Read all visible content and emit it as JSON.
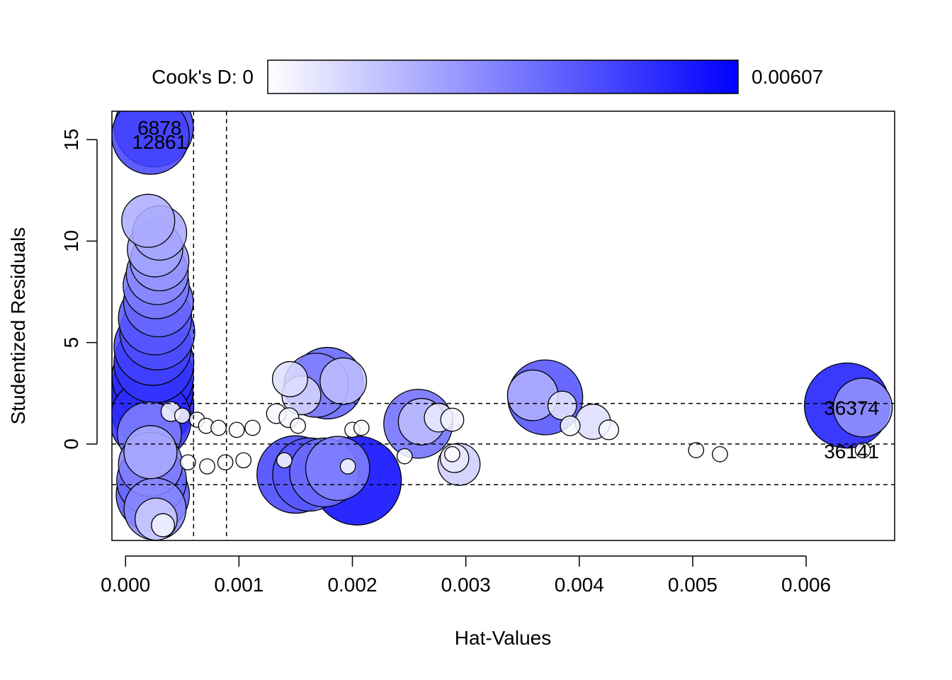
{
  "chart_data": {
    "type": "scatter",
    "xlabel": "Hat-Values",
    "ylabel": "Studentized Residuals",
    "xlim": [
      -0.00012,
      0.00678
    ],
    "ylim": [
      -4.75,
      16.4
    ],
    "x_ticks": [
      {
        "value": 0.0,
        "label": "0.000"
      },
      {
        "value": 0.001,
        "label": "0.001"
      },
      {
        "value": 0.002,
        "label": "0.002"
      },
      {
        "value": 0.003,
        "label": "0.003"
      },
      {
        "value": 0.004,
        "label": "0.004"
      },
      {
        "value": 0.005,
        "label": "0.005"
      },
      {
        "value": 0.006,
        "label": "0.006"
      }
    ],
    "y_ticks": [
      {
        "value": 0,
        "label": "0"
      },
      {
        "value": 5,
        "label": "5"
      },
      {
        "value": 10,
        "label": "10"
      },
      {
        "value": 15,
        "label": "15"
      }
    ],
    "reference_lines": {
      "vertical": [
        0.0006,
        0.00089
      ],
      "horizontal": [
        -2,
        0,
        2
      ]
    },
    "colorbar": {
      "label": "Cook's D: 0",
      "max_label": "0.00607",
      "min": 0,
      "max": 0.00607,
      "color_low": "#ffffff",
      "color_high": "#0000ff"
    },
    "point_labels": [
      {
        "text": "6878",
        "x": 0.0003,
        "y": 15.6
      },
      {
        "text": "12861",
        "x": 0.0003,
        "y": 14.9
      },
      {
        "text": "36374",
        "x": 0.0064,
        "y": 1.8
      },
      {
        "text": "36141",
        "x": 0.0064,
        "y": -0.35
      }
    ],
    "points": [
      {
        "h": 0.00022,
        "r": 15.2,
        "d": 0.0045
      },
      {
        "h": 0.00025,
        "r": 15.6,
        "d": 0.0047
      },
      {
        "h": 0.0002,
        "r": 11.0,
        "d": 0.002
      },
      {
        "h": 0.0003,
        "r": 10.4,
        "d": 0.0021
      },
      {
        "h": 0.00026,
        "r": 9.6,
        "d": 0.0022
      },
      {
        "h": 0.0003,
        "r": 9.0,
        "d": 0.0025
      },
      {
        "h": 0.00028,
        "r": 8.4,
        "d": 0.0028
      },
      {
        "h": 0.00027,
        "r": 7.8,
        "d": 0.0032
      },
      {
        "h": 0.00029,
        "r": 7.0,
        "d": 0.0036
      },
      {
        "h": 0.00026,
        "r": 6.2,
        "d": 0.004
      },
      {
        "h": 0.00028,
        "r": 5.5,
        "d": 0.0042
      },
      {
        "h": 0.00024,
        "r": 4.8,
        "d": 0.0045
      },
      {
        "h": 0.00025,
        "r": 4.0,
        "d": 0.0048
      },
      {
        "h": 0.00024,
        "r": 3.3,
        "d": 0.005
      },
      {
        "h": 0.00023,
        "r": 2.6,
        "d": 0.0052
      },
      {
        "h": 0.00023,
        "r": 1.9,
        "d": 0.0054
      },
      {
        "h": 0.00022,
        "r": 1.2,
        "d": 0.005
      },
      {
        "h": 0.00021,
        "r": 0.5,
        "d": 0.003
      },
      {
        "h": 0.00022,
        "r": -0.4,
        "d": 0.002
      },
      {
        "h": 0.00022,
        "r": -1.0,
        "d": 0.003
      },
      {
        "h": 0.00023,
        "r": -1.8,
        "d": 0.0036
      },
      {
        "h": 0.00024,
        "r": -2.5,
        "d": 0.004
      },
      {
        "h": 0.00026,
        "r": -3.2,
        "d": 0.0028
      },
      {
        "h": 0.00027,
        "r": -3.7,
        "d": 0.0012
      },
      {
        "h": 0.00033,
        "r": -4.0,
        "d": 0.0003
      },
      {
        "h": 0.0004,
        "r": 1.6,
        "d": 0.0002
      },
      {
        "h": 0.0005,
        "r": 1.4,
        "d": 0.0001
      },
      {
        "h": 0.00063,
        "r": 1.2,
        "d": 0.0001
      },
      {
        "h": 0.00071,
        "r": 0.9,
        "d": 0.0001
      },
      {
        "h": 0.00082,
        "r": 0.8,
        "d": 0.0001
      },
      {
        "h": 0.00098,
        "r": 0.7,
        "d": 0.0001
      },
      {
        "h": 0.00112,
        "r": 0.8,
        "d": 0.0001
      },
      {
        "h": 0.00055,
        "r": -0.9,
        "d": 0.0001
      },
      {
        "h": 0.00072,
        "r": -1.1,
        "d": 0.0001
      },
      {
        "h": 0.00088,
        "r": -0.9,
        "d": 0.0001
      },
      {
        "h": 0.00104,
        "r": -0.8,
        "d": 0.0001
      },
      {
        "h": 0.00145,
        "r": 3.2,
        "d": 0.0008
      },
      {
        "h": 0.00155,
        "r": 2.4,
        "d": 0.001
      },
      {
        "h": 0.00168,
        "r": 2.9,
        "d": 0.003
      },
      {
        "h": 0.00178,
        "r": 3.0,
        "d": 0.0038
      },
      {
        "h": 0.00192,
        "r": 3.1,
        "d": 0.0015
      },
      {
        "h": 0.00133,
        "r": 1.5,
        "d": 0.0002
      },
      {
        "h": 0.00144,
        "r": 1.3,
        "d": 0.0002
      },
      {
        "h": 0.00152,
        "r": 0.9,
        "d": 0.0001
      },
      {
        "h": 0.002,
        "r": 0.7,
        "d": 0.0001
      },
      {
        "h": 0.00208,
        "r": 0.8,
        "d": 0.0001
      },
      {
        "h": 0.0014,
        "r": -0.8,
        "d": 0.0001
      },
      {
        "h": 0.0015,
        "r": -1.5,
        "d": 0.0045
      },
      {
        "h": 0.00162,
        "r": -1.5,
        "d": 0.004
      },
      {
        "h": 0.00175,
        "r": -1.4,
        "d": 0.0035
      },
      {
        "h": 0.00187,
        "r": -1.2,
        "d": 0.003
      },
      {
        "h": 0.00204,
        "r": -1.8,
        "d": 0.006
      },
      {
        "h": 0.00196,
        "r": -1.1,
        "d": 0.0001
      },
      {
        "h": 0.00258,
        "r": 1.0,
        "d": 0.0035
      },
      {
        "h": 0.00261,
        "r": 1.1,
        "d": 0.0015
      },
      {
        "h": 0.00276,
        "r": 1.3,
        "d": 0.0005
      },
      {
        "h": 0.00288,
        "r": 1.2,
        "d": 0.0003
      },
      {
        "h": 0.00246,
        "r": -0.6,
        "d": 0.0001
      },
      {
        "h": 0.00288,
        "r": -0.5,
        "d": 0.0001
      },
      {
        "h": 0.0029,
        "r": -0.7,
        "d": 0.0005
      },
      {
        "h": 0.00294,
        "r": -1.0,
        "d": 0.0012
      },
      {
        "h": 0.00359,
        "r": 2.4,
        "d": 0.0018
      },
      {
        "h": 0.0037,
        "r": 2.3,
        "d": 0.0042
      },
      {
        "h": 0.00385,
        "r": 1.9,
        "d": 0.0005
      },
      {
        "h": 0.00392,
        "r": 0.9,
        "d": 0.0002
      },
      {
        "h": 0.00412,
        "r": 1.1,
        "d": 0.0008
      },
      {
        "h": 0.00426,
        "r": 0.7,
        "d": 0.0002
      },
      {
        "h": 0.00503,
        "r": -0.3,
        "d": 0.0001
      },
      {
        "h": 0.00524,
        "r": -0.5,
        "d": 0.0001
      },
      {
        "h": 0.00636,
        "r": 1.9,
        "d": 0.0055
      },
      {
        "h": 0.0065,
        "r": 1.8,
        "d": 0.0025
      },
      {
        "h": 0.0065,
        "r": -0.3,
        "d": 0.0001
      }
    ]
  }
}
